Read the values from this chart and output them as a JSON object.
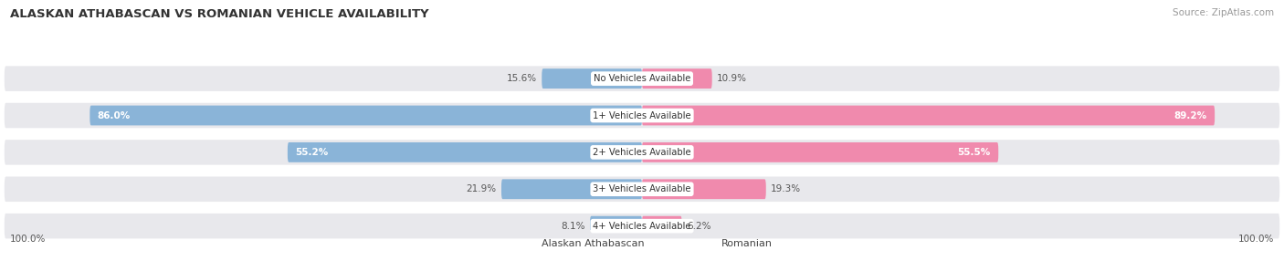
{
  "title": "ALASKAN ATHABASCAN VS ROMANIAN VEHICLE AVAILABILITY",
  "source": "Source: ZipAtlas.com",
  "categories": [
    "No Vehicles Available",
    "1+ Vehicles Available",
    "2+ Vehicles Available",
    "3+ Vehicles Available",
    "4+ Vehicles Available"
  ],
  "athabascan_values": [
    15.6,
    86.0,
    55.2,
    21.9,
    8.1
  ],
  "romanian_values": [
    10.9,
    89.2,
    55.5,
    19.3,
    6.2
  ],
  "athabascan_color": "#8ab4d8",
  "romanian_color": "#f08aad",
  "bg_color": "#ffffff",
  "row_bg_color": "#e8e8ec",
  "label_color": "#555555",
  "title_color": "#333333",
  "max_value": 100.0,
  "legend_labels": [
    "Alaskan Athabascan",
    "Romanian"
  ]
}
